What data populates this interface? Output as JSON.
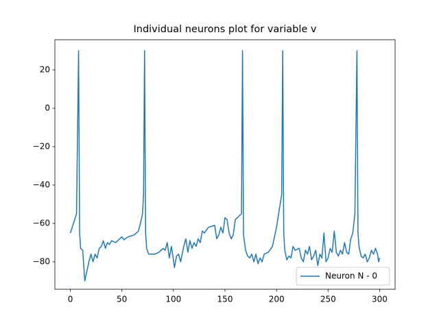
{
  "chart_data": {
    "type": "line",
    "title": "Individual neurons plot for variable v",
    "x": [
      0,
      6,
      8,
      9,
      10,
      12,
      14,
      16,
      18,
      20,
      22,
      24,
      26,
      28,
      30,
      32,
      34,
      36,
      38,
      40,
      44,
      48,
      50,
      52,
      56,
      62,
      66,
      68,
      70,
      71,
      72,
      73,
      74,
      76,
      82,
      86,
      90,
      92,
      94,
      96,
      98,
      100,
      101,
      103,
      105,
      107,
      110,
      112,
      114,
      116,
      118,
      120,
      122,
      124,
      126,
      128,
      130,
      134,
      140,
      142,
      144,
      146,
      148,
      150,
      152,
      154,
      156,
      158,
      160,
      164,
      166,
      167,
      168,
      170,
      172,
      174,
      176,
      178,
      180,
      182,
      184,
      186,
      188,
      192,
      196,
      198,
      200,
      202,
      205,
      206,
      207,
      208,
      210,
      212,
      214,
      216,
      218,
      222,
      224,
      226,
      228,
      230,
      232,
      234,
      236,
      238,
      240,
      242,
      244,
      246,
      248,
      250,
      252,
      254,
      256,
      258,
      260,
      262,
      264,
      266,
      268,
      270,
      272,
      274,
      276,
      278,
      279,
      280,
      282,
      284,
      286,
      288,
      290,
      292,
      294,
      296,
      298,
      299,
      300
    ],
    "series": [
      {
        "name": "Neuron N - 0",
        "color": "#1f77b4",
        "values": [
          -65,
          -55,
          30,
          -65,
          -73,
          -74,
          -90,
          -85,
          -80,
          -76,
          -80,
          -76,
          -78,
          -73,
          -72,
          -69,
          -73,
          -70,
          -71,
          -69,
          -70,
          -68,
          -67,
          -68.5,
          -67,
          -66,
          -64,
          -60,
          -55,
          -45,
          30,
          -65,
          -73,
          -76,
          -76,
          -75,
          -73,
          -74,
          -70,
          -78,
          -72,
          -79,
          -83,
          -77,
          -76,
          -80,
          -72,
          -68,
          -75,
          -69,
          -73,
          -70,
          -72,
          -68,
          -70,
          -64,
          -65,
          -62,
          -61,
          -68,
          -66,
          -62,
          -65,
          -57,
          -58,
          -65,
          -68,
          -66,
          -58,
          -56,
          -55,
          30,
          -66,
          -74,
          -77,
          -78,
          -76,
          -80,
          -76,
          -81,
          -78,
          -80,
          -76,
          -75,
          -72,
          -67,
          -62,
          -55,
          -45,
          30,
          -65,
          -74,
          -79,
          -77,
          -78,
          -72,
          -74,
          -73,
          -78,
          -80,
          -74,
          -76,
          -72,
          -79,
          -77,
          -74,
          -82,
          -76,
          -78,
          -65,
          -80,
          -78,
          -73,
          -75,
          -64,
          -75,
          -77,
          -74,
          -76,
          -70,
          -75,
          -76,
          -68,
          -65,
          -55,
          30,
          -65,
          -72,
          -77,
          -78,
          -76,
          -80,
          -78,
          -74,
          -76,
          -73,
          -76,
          -80,
          -78
        ]
      }
    ],
    "xlim": [
      -15,
      315
    ],
    "xticks": [
      0,
      50,
      100,
      150,
      200,
      250,
      300
    ],
    "ylim": [
      -94.3,
      35.7
    ],
    "yticks": [
      {
        "value": -80,
        "label": "−80"
      },
      {
        "value": -60,
        "label": "−60"
      },
      {
        "value": -40,
        "label": "−40"
      },
      {
        "value": -20,
        "label": "−20"
      },
      0,
      20
    ],
    "legend": "lower right"
  }
}
